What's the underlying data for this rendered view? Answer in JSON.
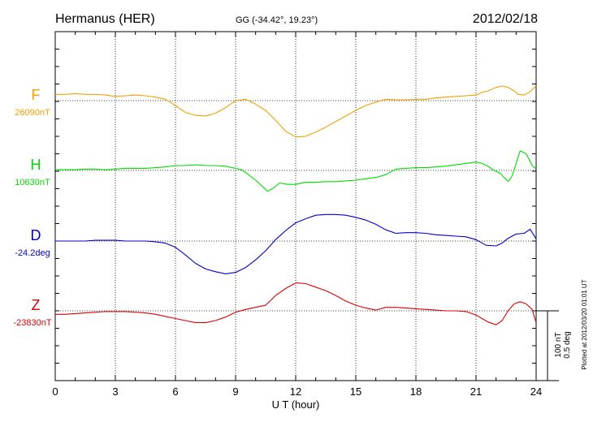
{
  "header": {
    "station": "Hermanus (HER)",
    "coords": "GG (-34.42°,  19.23°)",
    "date": "2012/02/18"
  },
  "footer": {
    "plotted": "Plotted at 2012/03/20 01:01  UT"
  },
  "colors": {
    "F": "#f0a000",
    "H": "#00dd00",
    "D": "#0000cc",
    "Z": "#dd0000",
    "frame": "#000000"
  },
  "chart_data": {
    "type": "line",
    "xlabel": "U T (hour)",
    "xlim": [
      0,
      24
    ],
    "xticks": [
      "0",
      "3",
      "6",
      "9",
      "12",
      "15",
      "18",
      "21",
      "24"
    ],
    "grid": true,
    "scale_bar": {
      "label1": "100 nT",
      "label2": "0.5 deg"
    },
    "series": [
      {
        "name": "F",
        "baseline_label": "26090nT",
        "unit": "nT",
        "baseline": 26090,
        "x": [
          0,
          0.5,
          1,
          1.5,
          2,
          2.5,
          3,
          3.5,
          4,
          4.5,
          5,
          5.5,
          6,
          6.5,
          7,
          7.5,
          8,
          8.5,
          9,
          9.5,
          10,
          10.5,
          11,
          11.5,
          12,
          12.5,
          13,
          13.5,
          14,
          14.5,
          15,
          15.5,
          16,
          16.5,
          17,
          17.5,
          18,
          18.5,
          19,
          19.5,
          20,
          20.5,
          21,
          21.3,
          21.6,
          22,
          22.3,
          22.6,
          22.9,
          23.1,
          23.4,
          23.7,
          24
        ],
        "y": [
          9,
          9,
          10,
          9,
          9,
          8,
          6,
          7,
          8,
          7,
          5,
          2,
          -7,
          -17,
          -21,
          -22,
          -18,
          -10,
          0,
          2,
          -5,
          -14,
          -28,
          -44,
          -52,
          -51,
          -45,
          -38,
          -30,
          -22,
          -14,
          -7,
          -2,
          2,
          1,
          1,
          2,
          2,
          4,
          5,
          6,
          7,
          8,
          12,
          14,
          19,
          21,
          19,
          14,
          9,
          8,
          13,
          21
        ]
      },
      {
        "name": "H",
        "baseline_label": "10630nT",
        "unit": "nT",
        "baseline": 10630,
        "x": [
          0,
          0.5,
          1,
          1.5,
          2,
          2.5,
          3,
          3.5,
          4,
          4.5,
          5,
          5.5,
          6,
          6.5,
          7,
          7.5,
          8,
          8.5,
          9,
          9.3,
          9.6,
          10,
          10.3,
          10.6,
          10.9,
          11.2,
          11.6,
          12,
          12.5,
          13,
          13.5,
          14,
          14.5,
          15,
          15.5,
          16,
          16.5,
          17,
          17.5,
          18,
          18.5,
          19,
          19.5,
          20,
          20.5,
          21,
          21.3,
          21.6,
          21.9,
          22.2,
          22.4,
          22.6,
          22.8,
          23,
          23.2,
          23.5,
          23.8,
          24
        ],
        "y": [
          1,
          1,
          1,
          2,
          2,
          1,
          2,
          3,
          3,
          3,
          4,
          5,
          7,
          7,
          8,
          7,
          7,
          6,
          3,
          1,
          -5,
          -14,
          -22,
          -30,
          -25,
          -18,
          -20,
          -20,
          -17,
          -17,
          -16,
          -16,
          -15,
          -14,
          -12,
          -10,
          -6,
          2,
          3,
          4,
          4,
          5,
          6,
          8,
          10,
          12,
          10,
          6,
          0,
          -4,
          -10,
          -16,
          -8,
          10,
          28,
          24,
          7,
          2
        ]
      },
      {
        "name": "D",
        "baseline_label": "-24.2deg",
        "unit": "deg",
        "baseline": -24.2,
        "x": [
          0,
          0.5,
          1,
          1.5,
          2,
          2.5,
          3,
          3.5,
          4,
          4.5,
          5,
          5.5,
          6,
          6.5,
          7,
          7.5,
          8,
          8.5,
          9,
          9.5,
          10,
          10.5,
          11,
          11.5,
          12,
          12.5,
          13,
          13.5,
          14,
          14.5,
          15,
          15.5,
          16,
          16.5,
          17,
          17.5,
          18,
          18.5,
          19,
          19.5,
          20,
          20.5,
          21,
          21.5,
          22,
          22.3,
          22.6,
          23,
          23.4,
          23.7,
          24
        ],
        "y": [
          0,
          0,
          0,
          0,
          1,
          1,
          1,
          0,
          0,
          0,
          -1,
          -3,
          -9,
          -20,
          -32,
          -40,
          -44,
          -47,
          -45,
          -38,
          -27,
          -14,
          2,
          15,
          26,
          32,
          37,
          38,
          38,
          37,
          34,
          30,
          24,
          16,
          11,
          12,
          12,
          11,
          9,
          8,
          7,
          6,
          2,
          -6,
          -7,
          -3,
          4,
          10,
          11,
          17,
          3
        ]
      },
      {
        "name": "Z",
        "baseline_label": "-23830nT",
        "unit": "nT",
        "baseline": -23830,
        "x": [
          0,
          0.5,
          1,
          1.5,
          2,
          2.5,
          3,
          3.5,
          4,
          4.5,
          5,
          5.5,
          6,
          6.5,
          7,
          7.5,
          8,
          8.5,
          9,
          9.5,
          10,
          10.5,
          11,
          11.5,
          12,
          12.5,
          13,
          13.5,
          14,
          14.5,
          15,
          15.5,
          16,
          16.5,
          17,
          17.5,
          18,
          18.5,
          19,
          19.5,
          20,
          20.5,
          21,
          21.3,
          21.6,
          22,
          22.3,
          22.6,
          22.9,
          23.2,
          23.5,
          23.8,
          24
        ],
        "y": [
          -5,
          -5,
          -4,
          -3,
          -2,
          -1,
          -1,
          -1,
          -2,
          -3,
          -5,
          -8,
          -11,
          -14,
          -17,
          -17,
          -14,
          -9,
          -2,
          2,
          5,
          8,
          22,
          32,
          40,
          39,
          34,
          29,
          22,
          14,
          8,
          4,
          1,
          5,
          5,
          4,
          3,
          2,
          1,
          0,
          0,
          -1,
          -6,
          -11,
          -16,
          -20,
          -14,
          0,
          10,
          13,
          10,
          2,
          -17
        ]
      }
    ]
  }
}
